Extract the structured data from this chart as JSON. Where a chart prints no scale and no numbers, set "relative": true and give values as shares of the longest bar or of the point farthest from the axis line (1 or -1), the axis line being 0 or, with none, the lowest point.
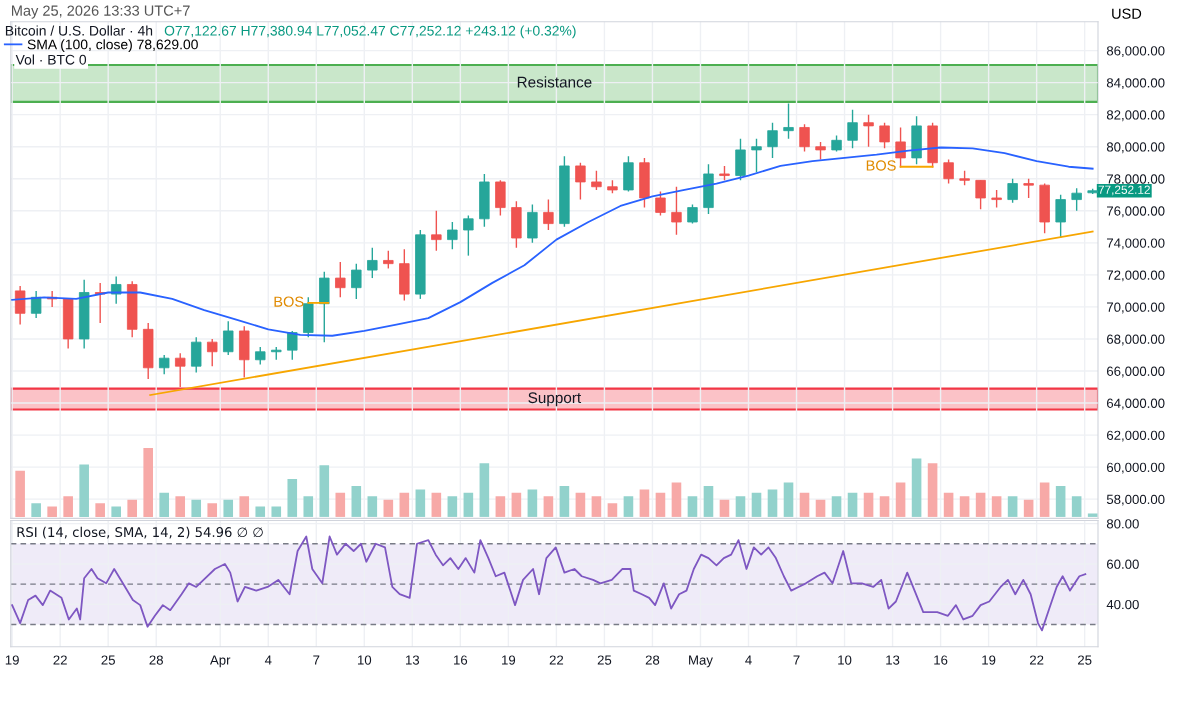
{
  "chart_data": [
    {
      "type": "candlestick",
      "title": "Bitcoin / U.S. Dollar · 4h",
      "subtitle": "O77,122.67 H77,380.94 L77,052.47 C77,252.12 +243.12 (+0.32%)",
      "ylabel": "USD",
      "x": [
        "2026-03-19T12:00",
        "2026-03-20T12:00",
        "2026-03-21T12:00",
        "2026-03-22T12:00",
        "2026-03-23T12:00",
        "2026-03-24T12:00",
        "2026-03-25T12:00",
        "2026-03-26T12:00",
        "2026-03-27T12:00",
        "2026-03-28T12:00",
        "2026-03-29T12:00",
        "2026-03-30T12:00",
        "2026-03-31T12:00",
        "2026-04-01T12:00",
        "2026-04-02T12:00",
        "2026-04-03T12:00",
        "2026-04-04T12:00",
        "2026-04-05T12:00",
        "2026-04-06T12:00",
        "2026-04-07T12:00",
        "2026-04-08T12:00",
        "2026-04-09T12:00",
        "2026-04-10T12:00",
        "2026-04-11T12:00",
        "2026-04-12T12:00",
        "2026-04-13T12:00",
        "2026-04-14T12:00",
        "2026-04-15T12:00",
        "2026-04-16T12:00",
        "2026-04-17T12:00",
        "2026-04-18T12:00",
        "2026-04-19T12:00",
        "2026-04-20T12:00",
        "2026-04-21T12:00",
        "2026-04-22T12:00",
        "2026-04-23T12:00",
        "2026-04-24T12:00",
        "2026-04-25T12:00",
        "2026-04-26T12:00",
        "2026-04-27T12:00",
        "2026-04-28T12:00",
        "2026-04-29T12:00",
        "2026-04-30T12:00",
        "2026-05-01T12:00",
        "2026-05-02T12:00",
        "2026-05-03T12:00",
        "2026-05-04T12:00",
        "2026-05-05T12:00",
        "2026-05-06T12:00",
        "2026-05-07T12:00",
        "2026-05-08T12:00",
        "2026-05-09T12:00",
        "2026-05-10T12:00",
        "2026-05-11T12:00",
        "2026-05-12T12:00",
        "2026-05-13T12:00",
        "2026-05-14T12:00",
        "2026-05-15T12:00",
        "2026-05-16T12:00",
        "2026-05-17T12:00",
        "2026-05-18T12:00",
        "2026-05-19T12:00",
        "2026-05-20T12:00",
        "2026-05-21T12:00",
        "2026-05-22T12:00",
        "2026-05-23T12:00",
        "2026-05-24T12:00",
        "2026-05-25T12:00"
      ],
      "ohlc": [
        [
          71000,
          71300,
          68900,
          69600
        ],
        [
          69600,
          71000,
          69300,
          70600
        ],
        [
          70600,
          71000,
          70000,
          70500
        ],
        [
          70500,
          70500,
          67400,
          68000
        ],
        [
          68000,
          71700,
          67400,
          70900
        ],
        [
          70900,
          71500,
          69000,
          70800
        ],
        [
          70800,
          71900,
          70200,
          71400
        ],
        [
          71400,
          71600,
          68100,
          68600
        ],
        [
          68600,
          69000,
          65500,
          66200
        ],
        [
          66200,
          67000,
          65800,
          66800
        ],
        [
          66800,
          67100,
          65000,
          66300
        ],
        [
          66300,
          68100,
          65900,
          67800
        ],
        [
          67800,
          68000,
          66300,
          67200
        ],
        [
          67200,
          69100,
          67000,
          68500
        ],
        [
          68500,
          68800,
          65600,
          66700
        ],
        [
          66700,
          67500,
          66400,
          67200
        ],
        [
          67200,
          67500,
          66700,
          67300
        ],
        [
          67300,
          68500,
          66700,
          68400
        ],
        [
          68400,
          70600,
          68100,
          70200
        ],
        [
          70200,
          72200,
          67800,
          71800
        ],
        [
          71800,
          72800,
          70600,
          71200
        ],
        [
          71200,
          72700,
          70500,
          72300
        ],
        [
          72300,
          73700,
          71800,
          72900
        ],
        [
          72900,
          73500,
          72400,
          72700
        ],
        [
          72700,
          73600,
          70400,
          70800
        ],
        [
          70800,
          74800,
          70500,
          74500
        ],
        [
          74500,
          76000,
          73500,
          74200
        ],
        [
          74200,
          75300,
          73600,
          74800
        ],
        [
          74800,
          75700,
          73200,
          75500
        ],
        [
          75500,
          78300,
          75000,
          77800
        ],
        [
          77800,
          77900,
          75700,
          76200
        ],
        [
          76200,
          76600,
          73700,
          74300
        ],
        [
          74300,
          76400,
          74000,
          75900
        ],
        [
          75900,
          76700,
          74800,
          75200
        ],
        [
          75200,
          79400,
          75000,
          78800
        ],
        [
          78800,
          79000,
          76700,
          77800
        ],
        [
          77800,
          78500,
          77300,
          77500
        ],
        [
          77500,
          77900,
          77100,
          77300
        ],
        [
          77300,
          79400,
          77200,
          79000
        ],
        [
          79000,
          79300,
          76200,
          76800
        ],
        [
          76800,
          77200,
          75700,
          75900
        ],
        [
          75900,
          77500,
          74500,
          75300
        ],
        [
          75300,
          76400,
          75200,
          76200
        ],
        [
          76200,
          78900,
          75800,
          78300
        ],
        [
          78300,
          78800,
          77900,
          78200
        ],
        [
          78200,
          80500,
          77900,
          79800
        ],
        [
          79800,
          80500,
          78400,
          80000
        ],
        [
          80000,
          81500,
          79300,
          81000
        ],
        [
          81000,
          82700,
          80500,
          81200
        ],
        [
          81200,
          81400,
          79700,
          80000
        ],
        [
          80000,
          80300,
          79200,
          79800
        ],
        [
          79800,
          80700,
          79700,
          80400
        ],
        [
          80400,
          82300,
          79900,
          81500
        ],
        [
          81500,
          82000,
          80000,
          81300
        ],
        [
          81300,
          81500,
          79900,
          80300
        ],
        [
          80300,
          81200,
          78700,
          79300
        ],
        [
          79300,
          81900,
          78900,
          81300
        ],
        [
          81300,
          81500,
          78700,
          79000
        ],
        [
          79000,
          79200,
          77700,
          78000
        ],
        [
          78000,
          78500,
          77600,
          77900
        ],
        [
          77900,
          77900,
          76100,
          76800
        ],
        [
          76800,
          77300,
          76200,
          76700
        ],
        [
          76700,
          78000,
          76500,
          77700
        ],
        [
          77700,
          78000,
          76800,
          77600
        ],
        [
          77600,
          77700,
          74600,
          75300
        ],
        [
          75300,
          77000,
          74300,
          76700
        ],
        [
          76700,
          77400,
          76000,
          77100
        ],
        [
          77122.67,
          77380.94,
          77052.47,
          77252.12
        ]
      ],
      "colors": [
        "#ef5350",
        "#26a69a",
        "#ef5350",
        "#ef5350",
        "#26a69a",
        "#ef5350",
        "#26a69a",
        "#ef5350",
        "#ef5350",
        "#26a69a",
        "#ef5350",
        "#26a69a",
        "#ef5350",
        "#26a69a",
        "#ef5350",
        "#26a69a",
        "#26a69a",
        "#26a69a",
        "#26a69a",
        "#26a69a",
        "#ef5350",
        "#26a69a",
        "#26a69a",
        "#ef5350",
        "#ef5350",
        "#26a69a",
        "#ef5350",
        "#26a69a",
        "#26a69a",
        "#26a69a",
        "#ef5350",
        "#ef5350",
        "#26a69a",
        "#ef5350",
        "#26a69a",
        "#ef5350",
        "#ef5350",
        "#ef5350",
        "#26a69a",
        "#ef5350",
        "#ef5350",
        "#ef5350",
        "#26a69a",
        "#26a69a",
        "#ef5350",
        "#26a69a",
        "#26a69a",
        "#26a69a",
        "#26a69a",
        "#ef5350",
        "#ef5350",
        "#26a69a",
        "#26a69a",
        "#ef5350",
        "#ef5350",
        "#ef5350",
        "#26a69a",
        "#ef5350",
        "#ef5350",
        "#ef5350",
        "#ef5350",
        "#ef5350",
        "#26a69a",
        "#ef5350",
        "#ef5350",
        "#26a69a",
        "#26a69a",
        "#26a69a"
      ],
      "series": [
        {
          "name": "SMA (100, close) 78,629.00",
          "type": "line",
          "color": "#2962ff",
          "x": [
            "2026-03-19",
            "2026-03-21",
            "2026-03-23",
            "2026-03-25",
            "2026-03-27",
            "2026-03-29",
            "2026-03-31",
            "2026-04-02",
            "2026-04-04",
            "2026-04-06",
            "2026-04-08",
            "2026-04-10",
            "2026-04-12",
            "2026-04-14",
            "2026-04-16",
            "2026-04-18",
            "2026-04-20",
            "2026-04-22",
            "2026-04-24",
            "2026-04-26",
            "2026-04-28",
            "2026-04-30",
            "2026-05-02",
            "2026-05-04",
            "2026-05-06",
            "2026-05-08",
            "2026-05-10",
            "2026-05-12",
            "2026-05-14",
            "2026-05-16",
            "2026-05-18",
            "2026-05-20",
            "2026-05-22",
            "2026-05-24",
            "2026-05-25T12:00"
          ],
          "values": [
            70440,
            70600,
            70500,
            70900,
            70900,
            70500,
            69800,
            69200,
            68600,
            68250,
            68200,
            68500,
            68900,
            69300,
            70300,
            71500,
            72600,
            74200,
            75300,
            76300,
            76900,
            77300,
            77700,
            78200,
            78800,
            79100,
            79300,
            79500,
            79750,
            79950,
            79900,
            79600,
            79100,
            78750,
            78629
          ]
        },
        {
          "type": "line",
          "color": "#f7a600",
          "x": [
            "2026-03-27T15:00",
            "2026-05-25T12:00"
          ],
          "values": [
            64500,
            74700
          ]
        },
        {
          "type": "line",
          "color": "#f7a600",
          "x": [
            "2026-04-06T12:00",
            "2026-04-07T18:00"
          ],
          "values": [
            70250,
            70250
          ]
        },
        {
          "type": "line",
          "color": "#f7a600",
          "x": [
            "2026-05-13T12:00",
            "2026-05-15T12:00"
          ],
          "values": [
            78750,
            78750
          ]
        }
      ],
      "bands": [
        {
          "axis": "y",
          "from": 63600,
          "to": 64900,
          "label": "Support",
          "color": "#f23645"
        },
        {
          "axis": "y",
          "from": 82800,
          "to": 85100,
          "label": "Resistance",
          "color": "#4caf50"
        }
      ],
      "annotations": [
        {
          "text": "BOS",
          "x": "2026-04-06T12:00",
          "y": 70250
        },
        {
          "text": "BOS",
          "x": "2026-05-13T12:00",
          "y": 78750
        },
        {
          "text": "77,252.12",
          "x": "2026-05-25T12:00",
          "y": 77252.12
        },
        "May 25, 2026 13:33 UTC+7"
      ],
      "xlim": [
        "2026-03-18T22:00",
        "2026-05-25T20:00"
      ],
      "xticks": [
        {
          "value": "2026-03-19",
          "label": null
        },
        {
          "value": "2026-03-22",
          "label": null
        },
        {
          "value": "2026-03-25",
          "label": null
        },
        {
          "value": "2026-03-28",
          "label": null
        },
        {
          "value": "2026-04-01",
          "label": null
        },
        {
          "value": "2026-04-04",
          "label": null
        },
        {
          "value": "2026-04-07",
          "label": null
        },
        {
          "value": "2026-04-10",
          "label": null
        },
        {
          "value": "2026-04-13",
          "label": null
        },
        {
          "value": "2026-04-16",
          "label": null
        },
        {
          "value": "2026-04-19",
          "label": null
        },
        {
          "value": "2026-04-22",
          "label": null
        },
        {
          "value": "2026-04-25",
          "label": null
        },
        {
          "value": "2026-04-28",
          "label": null
        },
        {
          "value": "2026-05-01",
          "label": null
        },
        {
          "value": "2026-05-04",
          "label": null
        },
        {
          "value": "2026-05-07",
          "label": null
        },
        {
          "value": "2026-05-10",
          "label": null
        },
        {
          "value": "2026-05-13",
          "label": null
        },
        {
          "value": "2026-05-16",
          "label": null
        },
        {
          "value": "2026-05-19",
          "label": null
        },
        {
          "value": "2026-05-22",
          "label": null
        },
        {
          "value": "2026-05-25",
          "label": null
        }
      ],
      "ylim": [
        56800,
        87800
      ],
      "yticks": [
        {
          "value": 58000,
          "label": "58,000.00"
        },
        {
          "value": 60000,
          "label": "60,000.00"
        },
        {
          "value": 62000,
          "label": "62,000.00"
        },
        {
          "value": 64000,
          "label": "64,000.00"
        },
        {
          "value": 66000,
          "label": "66,000.00"
        },
        {
          "value": 68000,
          "label": "68,000.00"
        },
        {
          "value": 70000,
          "label": "70,000.00"
        },
        {
          "value": 72000,
          "label": "72,000.00"
        },
        {
          "value": 74000,
          "label": "74,000.00"
        },
        {
          "value": 76000,
          "label": "76,000.00"
        },
        {
          "value": 78000,
          "label": "78,000.00"
        },
        {
          "value": 80000,
          "label": "80,000.00"
        },
        {
          "value": 82000,
          "label": "82,000.00"
        },
        {
          "value": 84000,
          "label": "84,000.00"
        },
        {
          "value": 86000,
          "label": "86,000.00"
        }
      ],
      "grid": true,
      "legend": "top left",
      "tick_labels": "y"
    },
    {
      "type": "bar",
      "title": "Vol · BTC 0",
      "relative": true,
      "tick_labels": false,
      "x": [
        "2026-03-19T12:00",
        "2026-03-20T12:00",
        "2026-03-21T12:00",
        "2026-03-22T12:00",
        "2026-03-23T12:00",
        "2026-03-24T12:00",
        "2026-03-25T12:00",
        "2026-03-26T12:00",
        "2026-03-27T12:00",
        "2026-03-28T12:00",
        "2026-03-29T12:00",
        "2026-03-30T12:00",
        "2026-03-31T12:00",
        "2026-04-01T12:00",
        "2026-04-02T12:00",
        "2026-04-03T12:00",
        "2026-04-04T12:00",
        "2026-04-05T12:00",
        "2026-04-06T12:00",
        "2026-04-07T12:00",
        "2026-04-08T12:00",
        "2026-04-09T12:00",
        "2026-04-10T12:00",
        "2026-04-11T12:00",
        "2026-04-12T12:00",
        "2026-04-13T12:00",
        "2026-04-14T12:00",
        "2026-04-15T12:00",
        "2026-04-16T12:00",
        "2026-04-17T12:00",
        "2026-04-18T12:00",
        "2026-04-19T12:00",
        "2026-04-20T12:00",
        "2026-04-21T12:00",
        "2026-04-22T12:00",
        "2026-04-23T12:00",
        "2026-04-24T12:00",
        "2026-04-25T12:00",
        "2026-04-26T12:00",
        "2026-04-27T12:00",
        "2026-04-28T12:00",
        "2026-04-29T12:00",
        "2026-04-30T12:00",
        "2026-05-01T12:00",
        "2026-05-02T12:00",
        "2026-05-03T12:00",
        "2026-05-04T12:00",
        "2026-05-05T12:00",
        "2026-05-06T12:00",
        "2026-05-07T12:00",
        "2026-05-08T12:00",
        "2026-05-09T12:00",
        "2026-05-10T12:00",
        "2026-05-11T12:00",
        "2026-05-12T12:00",
        "2026-05-13T12:00",
        "2026-05-14T12:00",
        "2026-05-15T12:00",
        "2026-05-16T12:00",
        "2026-05-17T12:00",
        "2026-05-18T12:00",
        "2026-05-19T12:00",
        "2026-05-20T12:00",
        "2026-05-21T12:00",
        "2026-05-22T12:00",
        "2026-05-23T12:00",
        "2026-05-24T12:00",
        "2026-05-25T12:00"
      ],
      "values": [
        0.67,
        0.2,
        0.15,
        0.3,
        0.76,
        0.2,
        0.15,
        0.25,
        1.0,
        0.35,
        0.3,
        0.25,
        0.2,
        0.25,
        0.3,
        0.15,
        0.15,
        0.55,
        0.3,
        0.75,
        0.35,
        0.45,
        0.3,
        0.25,
        0.35,
        0.4,
        0.35,
        0.3,
        0.35,
        0.78,
        0.3,
        0.35,
        0.4,
        0.3,
        0.45,
        0.35,
        0.3,
        0.2,
        0.3,
        0.4,
        0.35,
        0.5,
        0.3,
        0.45,
        0.25,
        0.3,
        0.35,
        0.4,
        0.5,
        0.35,
        0.25,
        0.3,
        0.35,
        0.35,
        0.3,
        0.5,
        0.85,
        0.78,
        0.35,
        0.3,
        0.35,
        0.3,
        0.3,
        0.25,
        0.5,
        0.45,
        0.3,
        0.05
      ],
      "colors": [
        "#f7a9a7",
        "#92d2cc",
        "#f7a9a7",
        "#f7a9a7",
        "#92d2cc",
        "#f7a9a7",
        "#92d2cc",
        "#f7a9a7",
        "#f7a9a7",
        "#92d2cc",
        "#f7a9a7",
        "#92d2cc",
        "#f7a9a7",
        "#92d2cc",
        "#f7a9a7",
        "#92d2cc",
        "#92d2cc",
        "#92d2cc",
        "#92d2cc",
        "#92d2cc",
        "#f7a9a7",
        "#92d2cc",
        "#92d2cc",
        "#f7a9a7",
        "#f7a9a7",
        "#92d2cc",
        "#f7a9a7",
        "#92d2cc",
        "#92d2cc",
        "#92d2cc",
        "#f7a9a7",
        "#f7a9a7",
        "#92d2cc",
        "#f7a9a7",
        "#92d2cc",
        "#f7a9a7",
        "#f7a9a7",
        "#f7a9a7",
        "#92d2cc",
        "#f7a9a7",
        "#f7a9a7",
        "#f7a9a7",
        "#92d2cc",
        "#92d2cc",
        "#f7a9a7",
        "#92d2cc",
        "#92d2cc",
        "#92d2cc",
        "#92d2cc",
        "#f7a9a7",
        "#f7a9a7",
        "#92d2cc",
        "#92d2cc",
        "#f7a9a7",
        "#f7a9a7",
        "#f7a9a7",
        "#92d2cc",
        "#f7a9a7",
        "#f7a9a7",
        "#f7a9a7",
        "#f7a9a7",
        "#f7a9a7",
        "#92d2cc",
        "#f7a9a7",
        "#f7a9a7",
        "#92d2cc",
        "#92d2cc",
        "#92d2cc"
      ],
      "xlim": [
        "2026-03-18T22:00",
        "2026-05-25T20:00"
      ]
    },
    {
      "type": "line",
      "title": "RSI (14, close, SMA, 14, 2) 54.96 ∅ ∅",
      "series": [
        {
          "type": "line",
          "color": "#7e57c2",
          "x": [
            "2026-03-19T00:00",
            "2026-03-19T12:00",
            "2026-03-20T00:00",
            "2026-03-20T11:00",
            "2026-03-20T22:00",
            "2026-03-21T09:00",
            "2026-03-22T02:00",
            "2026-03-22T13:00",
            "2026-03-23T01:00",
            "2026-03-23T06:00",
            "2026-03-23T12:00",
            "2026-03-23T23:00",
            "2026-03-24T08:00",
            "2026-03-24T21:00",
            "2026-03-25T09:00",
            "2026-03-25T22:00",
            "2026-03-26T13:00",
            "2026-03-27T00:00",
            "2026-03-27T11:00",
            "2026-03-27T22:00",
            "2026-03-28T10:00",
            "2026-03-28T21:00",
            "2026-03-29T14:00",
            "2026-03-30T01:00",
            "2026-03-30T12:00",
            "2026-03-30T23:00",
            "2026-03-31T16:00",
            "2026-04-01T07:00",
            "2026-04-01T15:00",
            "2026-04-02T02:00",
            "2026-04-02T13:00",
            "2026-04-03T06:00",
            "2026-04-03T23:00",
            "2026-04-04T15:00",
            "2026-04-05T08:00",
            "2026-04-05T20:00",
            "2026-04-06T09:00",
            "2026-04-06T18:00",
            "2026-04-07T09:00",
            "2026-04-07T20:00",
            "2026-04-08T07:00",
            "2026-04-08T20:00",
            "2026-04-09T08:00",
            "2026-04-09T19:00",
            "2026-04-10T03:00",
            "2026-04-10T17:00",
            "2026-04-11T07:00",
            "2026-04-11T18:00",
            "2026-04-12T05:00",
            "2026-04-12T20:00",
            "2026-04-13T07:00",
            "2026-04-14T00:00",
            "2026-04-14T11:00",
            "2026-04-14T22:00",
            "2026-04-15T09:00",
            "2026-04-15T21:00",
            "2026-04-16T08:00",
            "2026-04-16T21:00",
            "2026-04-17T06:00",
            "2026-04-17T18:00",
            "2026-04-18T05:00",
            "2026-04-18T18:00",
            "2026-04-19T10:00",
            "2026-04-19T22:00",
            "2026-04-20T13:00",
            "2026-04-20T22:00",
            "2026-04-21T09:00",
            "2026-04-21T23:00",
            "2026-04-22T12:00",
            "2026-04-23T03:00",
            "2026-04-23T14:00",
            "2026-04-24T07:00",
            "2026-04-24T18:00",
            "2026-04-25T11:00",
            "2026-04-26T03:00",
            "2026-04-26T15:00",
            "2026-04-26T20:00",
            "2026-04-27T08:00",
            "2026-04-27T19:00",
            "2026-04-28T04:00",
            "2026-04-28T17:00",
            "2026-04-29T04:00",
            "2026-04-29T16:00",
            "2026-04-30T03:00",
            "2026-04-30T14:00",
            "2026-05-01T01:00",
            "2026-05-01T12:00",
            "2026-05-02T00:00",
            "2026-05-02T11:00",
            "2026-05-02T22:00",
            "2026-05-03T09:00",
            "2026-05-03T21:00",
            "2026-05-04T08:00",
            "2026-05-04T19:00",
            "2026-05-05T06:00",
            "2026-05-05T17:00",
            "2026-05-06T05:00",
            "2026-05-06T16:00",
            "2026-05-07T03:00",
            "2026-05-07T14:00",
            "2026-05-08T07:00",
            "2026-05-08T18:00",
            "2026-05-09T06:00",
            "2026-05-09T22:00",
            "2026-05-10T10:00",
            "2026-05-11T02:00",
            "2026-05-11T19:00",
            "2026-05-12T07:00",
            "2026-05-12T18:00",
            "2026-05-13T05:00",
            "2026-05-13T22:00",
            "2026-05-14T09:00",
            "2026-05-14T22:00",
            "2026-05-15T19:00",
            "2026-05-16T11:00",
            "2026-05-16T23:00",
            "2026-05-17T10:00",
            "2026-05-18T00:00",
            "2026-05-18T12:00",
            "2026-05-19T01:00",
            "2026-05-19T18:00",
            "2026-05-20T05:00",
            "2026-05-20T16:00",
            "2026-05-21T04:00",
            "2026-05-21T15:00",
            "2026-05-22T02:00",
            "2026-05-22T08:00",
            "2026-05-22T19:00",
            "2026-05-23T06:00",
            "2026-05-23T15:00",
            "2026-05-24T02:00",
            "2026-05-24T16:00",
            "2026-05-25T01:00"
          ],
          "values": [
            39.6,
            30.7,
            42.1,
            44.3,
            39.6,
            46.8,
            43.2,
            32.5,
            37.9,
            32.5,
            52.9,
            57.5,
            52.9,
            50.4,
            57.5,
            50.4,
            42.1,
            39.6,
            28.9,
            34.3,
            39.6,
            37.1,
            45,
            50.4,
            48.6,
            52.1,
            57.5,
            60,
            55.7,
            41.4,
            48.6,
            46.8,
            48.6,
            52.1,
            45,
            66.4,
            73.6,
            57.5,
            50.4,
            73.6,
            64.6,
            70,
            66.4,
            70,
            61.1,
            70,
            68.2,
            48.6,
            45,
            43.2,
            70,
            71.8,
            64.6,
            59.3,
            62.9,
            57.5,
            62.9,
            55.7,
            71.8,
            62.9,
            53.9,
            55.7,
            39.6,
            52.1,
            57.5,
            45,
            62.9,
            68.2,
            55.7,
            57.5,
            53.9,
            52.1,
            50.4,
            52.1,
            57.5,
            57.5,
            46.8,
            45,
            43.2,
            39.6,
            50.4,
            37.9,
            45,
            46.8,
            57.5,
            64.6,
            62.9,
            59.3,
            62.9,
            64.6,
            71.8,
            57.5,
            68.2,
            64.6,
            68.2,
            62.9,
            53.9,
            46.8,
            48.6,
            50.4,
            53.9,
            55.7,
            50.4,
            66.4,
            50.4,
            50.4,
            48.6,
            52.1,
            37.9,
            41.4,
            55.7,
            46.8,
            36.1,
            36.1,
            34.3,
            39.6,
            32.5,
            34.3,
            39.6,
            41.4,
            48.6,
            52.1,
            45,
            52.1,
            45,
            30.7,
            27.1,
            37.9,
            48.6,
            53.9,
            46.8,
            53.9,
            54.96
          ]
        }
      ],
      "bands": [
        {
          "axis": "y",
          "from": 30,
          "to": 70,
          "color": "#7e57c2"
        }
      ],
      "ref_lines": [
        {
          "axis": "y",
          "value": 70,
          "color": "#787b86",
          "line_style": "dashed"
        },
        {
          "axis": "y",
          "value": 50,
          "color": "#787b86",
          "line_style": "dashed"
        },
        {
          "axis": "y",
          "value": 30,
          "color": "#787b86",
          "line_style": "dashed"
        }
      ],
      "xlim": [
        "2026-03-18T22:00",
        "2026-05-25T20:00"
      ],
      "xticks": [
        {
          "value": "2026-03-19",
          "label": "19"
        },
        {
          "value": "2026-03-22",
          "label": "22"
        },
        {
          "value": "2026-03-25",
          "label": "25"
        },
        {
          "value": "2026-03-28",
          "label": "28"
        },
        {
          "value": "2026-04-01",
          "label": "Apr"
        },
        {
          "value": "2026-04-04",
          "label": "4"
        },
        {
          "value": "2026-04-07",
          "label": "7"
        },
        {
          "value": "2026-04-10",
          "label": "10"
        },
        {
          "value": "2026-04-13",
          "label": "13"
        },
        {
          "value": "2026-04-16",
          "label": "16"
        },
        {
          "value": "2026-04-19",
          "label": "19"
        },
        {
          "value": "2026-04-22",
          "label": "22"
        },
        {
          "value": "2026-04-25",
          "label": "25"
        },
        {
          "value": "2026-04-28",
          "label": "28"
        },
        {
          "value": "2026-05-01",
          "label": "May"
        },
        {
          "value": "2026-05-04",
          "label": "4"
        },
        {
          "value": "2026-05-07",
          "label": "7"
        },
        {
          "value": "2026-05-10",
          "label": "10"
        },
        {
          "value": "2026-05-13",
          "label": "13"
        },
        {
          "value": "2026-05-16",
          "label": "16"
        },
        {
          "value": "2026-05-19",
          "label": "19"
        },
        {
          "value": "2026-05-22",
          "label": "22"
        },
        {
          "value": "2026-05-25",
          "label": "25"
        }
      ],
      "ylim": [
        19,
        81.5
      ],
      "yticks": [
        {
          "value": 40,
          "label": "40.00"
        },
        {
          "value": 60,
          "label": "60.00"
        },
        {
          "value": 80,
          "label": "80.00"
        }
      ],
      "grid": true
    }
  ]
}
